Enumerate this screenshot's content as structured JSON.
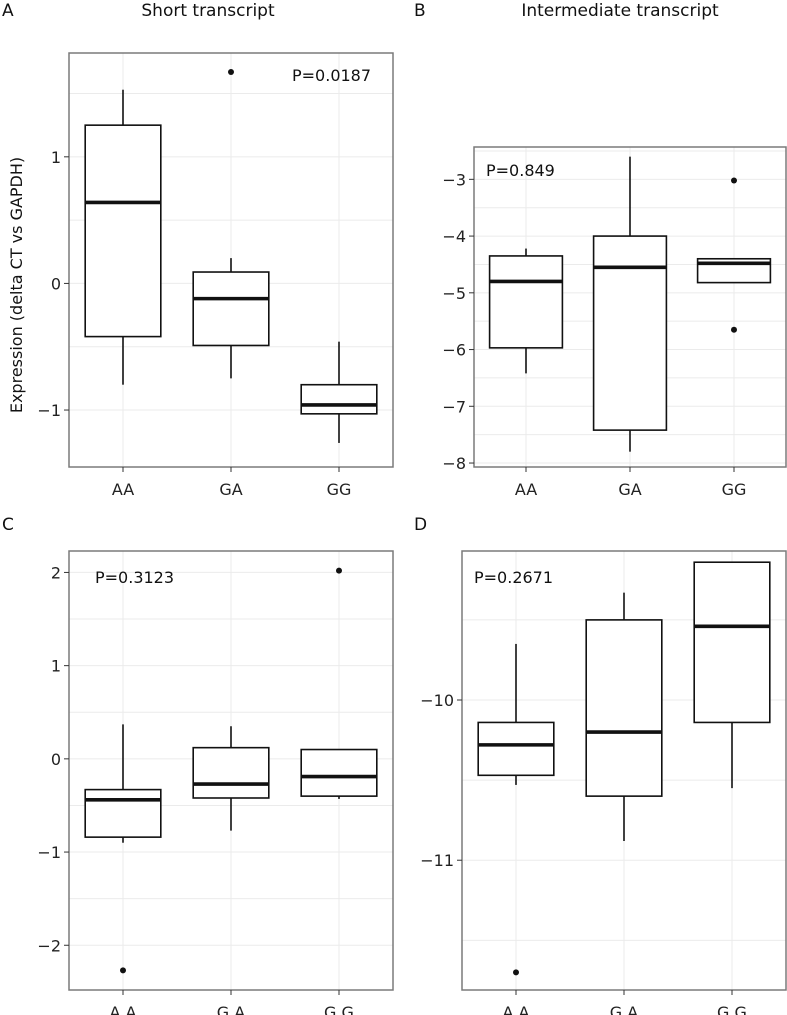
{
  "figure": {
    "ylabel": "Expression (delta CT vs GAPDH)"
  },
  "chart_data": [
    {
      "type": "box",
      "panel": "A",
      "title": "Short transcript",
      "pvalue": "P=0.0187",
      "ylabel": "Expression (delta CT vs GAPDH)",
      "ylim": [
        -1.45,
        1.82
      ],
      "yticks": [
        -1,
        0,
        1
      ],
      "ytick_labels": [
        "−1",
        "0",
        "1"
      ],
      "categories": [
        "AA",
        "GA",
        "GG"
      ],
      "boxes": [
        {
          "category": "AA",
          "whisker_low": -0.8,
          "q1": -0.42,
          "median": 0.64,
          "q3": 1.25,
          "whisker_high": 1.53,
          "outliers": []
        },
        {
          "category": "GA",
          "whisker_low": -0.75,
          "q1": -0.49,
          "median": -0.12,
          "q3": 0.09,
          "whisker_high": 0.2,
          "outliers": [
            1.67
          ]
        },
        {
          "category": "GG",
          "whisker_low": -1.26,
          "q1": -1.03,
          "median": -0.96,
          "q3": -0.8,
          "whisker_high": -0.46,
          "outliers": []
        }
      ]
    },
    {
      "type": "box",
      "panel": "B",
      "title": "Intermediate transcript",
      "pvalue": "P=0.849",
      "ylabel": "",
      "ylim": [
        -8.07,
        -2.43
      ],
      "yticks": [
        -8,
        -7,
        -6,
        -5,
        -4,
        -3
      ],
      "ytick_labels": [
        "−8",
        "−7",
        "−6",
        "−5",
        "−4",
        "−3"
      ],
      "categories": [
        "AA",
        "GA",
        "GG"
      ],
      "boxes": [
        {
          "category": "AA",
          "whisker_low": -6.42,
          "q1": -5.97,
          "median": -4.8,
          "q3": -4.35,
          "whisker_high": -4.22,
          "outliers": []
        },
        {
          "category": "GA",
          "whisker_low": -7.8,
          "q1": -7.42,
          "median": -4.55,
          "q3": -4.0,
          "whisker_high": -2.6,
          "outliers": []
        },
        {
          "category": "GG",
          "whisker_low": -4.82,
          "q1": -4.82,
          "median": -4.48,
          "q3": -4.4,
          "whisker_high": -4.4,
          "outliers": [
            -3.02,
            -5.65
          ]
        }
      ]
    },
    {
      "type": "box",
      "panel": "C",
      "title": "",
      "pvalue": "P=0.3123",
      "ylabel": "",
      "ylim": [
        -2.48,
        2.23
      ],
      "yticks": [
        -2,
        -1,
        0,
        1,
        2
      ],
      "ytick_labels": [
        "−2",
        "−1",
        "0",
        "1",
        "2"
      ],
      "categories": [
        "A A",
        "G A",
        "G G"
      ],
      "boxes": [
        {
          "category": "A A",
          "whisker_low": -0.9,
          "q1": -0.84,
          "median": -0.44,
          "q3": -0.33,
          "whisker_high": 0.37,
          "outliers": [
            -2.27
          ]
        },
        {
          "category": "G A",
          "whisker_low": -0.77,
          "q1": -0.42,
          "median": -0.27,
          "q3": 0.12,
          "whisker_high": 0.35,
          "outliers": []
        },
        {
          "category": "G G",
          "whisker_low": -0.43,
          "q1": -0.4,
          "median": -0.19,
          "q3": 0.1,
          "whisker_high": 0.1,
          "outliers": [
            2.02
          ]
        }
      ]
    },
    {
      "type": "box",
      "panel": "D",
      "title": "",
      "pvalue": "P=0.2671",
      "ylabel": "",
      "ylim": [
        -11.81,
        -9.07
      ],
      "yticks": [
        -11,
        -10
      ],
      "ytick_labels": [
        "−11",
        "−10"
      ],
      "categories": [
        "A A",
        "G A",
        "G G"
      ],
      "boxes": [
        {
          "category": "A A",
          "whisker_low": -10.53,
          "q1": -10.47,
          "median": -10.28,
          "q3": -10.14,
          "whisker_high": -9.65,
          "outliers": [
            -11.7
          ]
        },
        {
          "category": "G A",
          "whisker_low": -10.88,
          "q1": -10.6,
          "median": -10.2,
          "q3": -9.5,
          "whisker_high": -9.33,
          "outliers": []
        },
        {
          "category": "G G",
          "whisker_low": -10.55,
          "q1": -10.14,
          "median": -9.54,
          "q3": -9.14,
          "whisker_high": -9.14,
          "outliers": []
        }
      ]
    }
  ]
}
